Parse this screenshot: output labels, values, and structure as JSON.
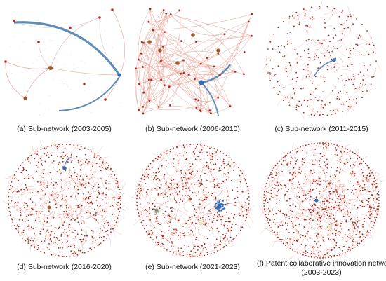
{
  "figure": {
    "panels": [
      {
        "caption": "(a) Sub-network (2003-2005)",
        "layout": "sparse",
        "nodes": 14
      },
      {
        "caption": "(b) Sub-network (2006-2010)",
        "layout": "sparse",
        "nodes": 60
      },
      {
        "caption": "(c) Sub-network (2011-2015)",
        "layout": "circle",
        "nodes": 240
      },
      {
        "caption": "(d) Sub-network (2016-2020)",
        "layout": "circle",
        "nodes": 520
      },
      {
        "caption": "(e) Sub-network (2021-2023)",
        "layout": "circle",
        "nodes": 560
      },
      {
        "caption_line1": "(f) Patent collaborative innovation network",
        "caption_line2": "(2003-2023)",
        "layout": "circle",
        "nodes": 700
      }
    ],
    "colors": {
      "node": "#b22a1f",
      "edge": "#e8a79c",
      "hub_blue": "#2f6fb3",
      "strong_edge": "#4f7fb0",
      "hub_brown": "#9a5a2c",
      "hub_grey": "#8c8c7c",
      "hub_cream": "#f0e6c8"
    }
  }
}
